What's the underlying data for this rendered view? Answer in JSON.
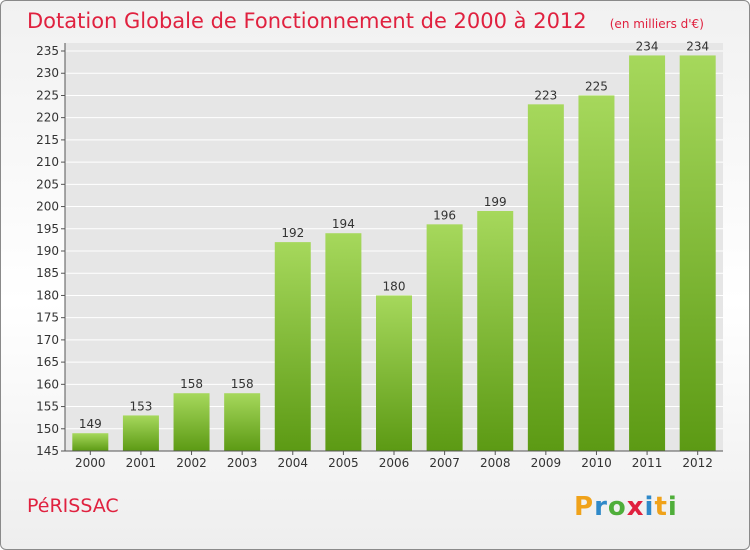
{
  "header": {
    "title": "Dotation Globale de Fonctionnement de 2000 à 2012",
    "unit": "(en milliers d'€)"
  },
  "footer": {
    "commune": "PéRISSAC",
    "brand": "Proxiti",
    "brand_colors": [
      "#f0a21a",
      "#2f89c9",
      "#4fae3a",
      "#e0213f",
      "#2f89c9",
      "#f0a21a",
      "#4fae3a"
    ]
  },
  "colors": {
    "bar_top": "#a6d85c",
    "bar_bottom": "#5c9a14",
    "title": "#e0213f",
    "grid": "#ffffff"
  },
  "chart_data": {
    "type": "bar",
    "categories": [
      "2000",
      "2001",
      "2002",
      "2003",
      "2004",
      "2005",
      "2006",
      "2007",
      "2008",
      "2009",
      "2010",
      "2011",
      "2012"
    ],
    "values": [
      149,
      153,
      158,
      158,
      192,
      194,
      180,
      196,
      199,
      223,
      225,
      234,
      234
    ],
    "ylim": [
      145,
      235
    ],
    "yticks": [
      145,
      150,
      155,
      160,
      165,
      170,
      175,
      180,
      185,
      190,
      195,
      200,
      205,
      210,
      215,
      220,
      225,
      230,
      235
    ],
    "grid": true
  }
}
